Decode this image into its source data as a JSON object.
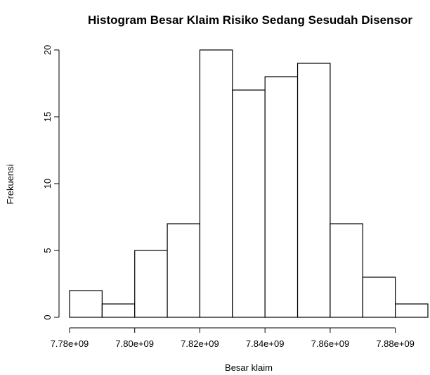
{
  "chart_data": {
    "type": "bar",
    "title": "Histogram Besar Klaim Risiko Sedang Sesudah Disensor",
    "xlabel": "Besar klaim",
    "ylabel": "Frekuensi",
    "bins": [
      {
        "start": 7780000000.0,
        "end": 7790000000.0,
        "count": 2
      },
      {
        "start": 7790000000.0,
        "end": 7800000000.0,
        "count": 1
      },
      {
        "start": 7800000000.0,
        "end": 7810000000.0,
        "count": 5
      },
      {
        "start": 7810000000.0,
        "end": 7820000000.0,
        "count": 7
      },
      {
        "start": 7820000000.0,
        "end": 7830000000.0,
        "count": 20
      },
      {
        "start": 7830000000.0,
        "end": 7840000000.0,
        "count": 17
      },
      {
        "start": 7840000000.0,
        "end": 7850000000.0,
        "count": 18
      },
      {
        "start": 7850000000.0,
        "end": 7860000000.0,
        "count": 19
      },
      {
        "start": 7860000000.0,
        "end": 7870000000.0,
        "count": 7
      },
      {
        "start": 7870000000.0,
        "end": 7880000000.0,
        "count": 3
      },
      {
        "start": 7880000000.0,
        "end": 7890000000.0,
        "count": 1
      }
    ],
    "xlim": [
      7780000000.0,
      7890000000.0
    ],
    "ylim": [
      0,
      20
    ],
    "x_ticks": [
      7780000000.0,
      7800000000.0,
      7820000000.0,
      7840000000.0,
      7860000000.0,
      7880000000.0
    ],
    "x_tick_labels": [
      "7.78e+09",
      "7.80e+09",
      "7.82e+09",
      "7.84e+09",
      "7.86e+09",
      "7.88e+09"
    ],
    "y_ticks": [
      0,
      5,
      10,
      15,
      20
    ],
    "y_tick_labels": [
      "0",
      "5",
      "10",
      "15",
      "20"
    ],
    "grid": false
  }
}
